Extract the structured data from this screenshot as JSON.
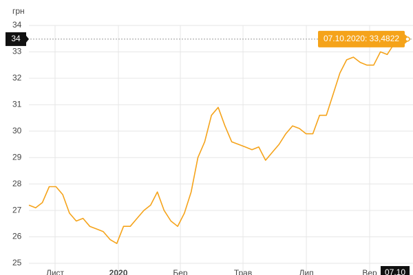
{
  "chart_data": {
    "type": "line",
    "y_label": "грн",
    "series": [
      {
        "color": "#f5a31a",
        "values": [
          27.2,
          27.1,
          27.3,
          27.9,
          27.9,
          27.6,
          26.9,
          26.6,
          26.7,
          26.4,
          26.3,
          26.2,
          25.9,
          25.75,
          26.4,
          26.4,
          26.7,
          27.0,
          27.2,
          27.7,
          27.0,
          26.6,
          26.4,
          26.9,
          27.7,
          29.0,
          29.6,
          30.6,
          30.9,
          30.2,
          29.6,
          29.5,
          29.4,
          29.3,
          29.4,
          28.9,
          29.2,
          29.5,
          29.9,
          30.2,
          30.1,
          29.9,
          29.9,
          30.6,
          30.6,
          31.4,
          32.2,
          32.7,
          32.8,
          32.6,
          32.5,
          32.5,
          33.0,
          32.9,
          33.3,
          33.5,
          33.4822
        ]
      }
    ],
    "xlim": [
      0,
      56
    ],
    "xticks": [
      {
        "value": 3.87,
        "label": "Лист"
      },
      {
        "value": 13.24,
        "label": "2020"
      },
      {
        "value": 22.4,
        "label": "Бер"
      },
      {
        "value": 31.67,
        "label": "Трав"
      },
      {
        "value": 41.04,
        "label": "Лип"
      },
      {
        "value": 50.4,
        "label": "Вер"
      }
    ],
    "ylim": [
      25,
      34.5
    ],
    "yticks": [
      25,
      26,
      27,
      28,
      29,
      30,
      31,
      32,
      33,
      34
    ],
    "grid": true,
    "current_label": "34",
    "tooltip": "07.10.2020: 33,4822",
    "date_label": "07.10"
  }
}
